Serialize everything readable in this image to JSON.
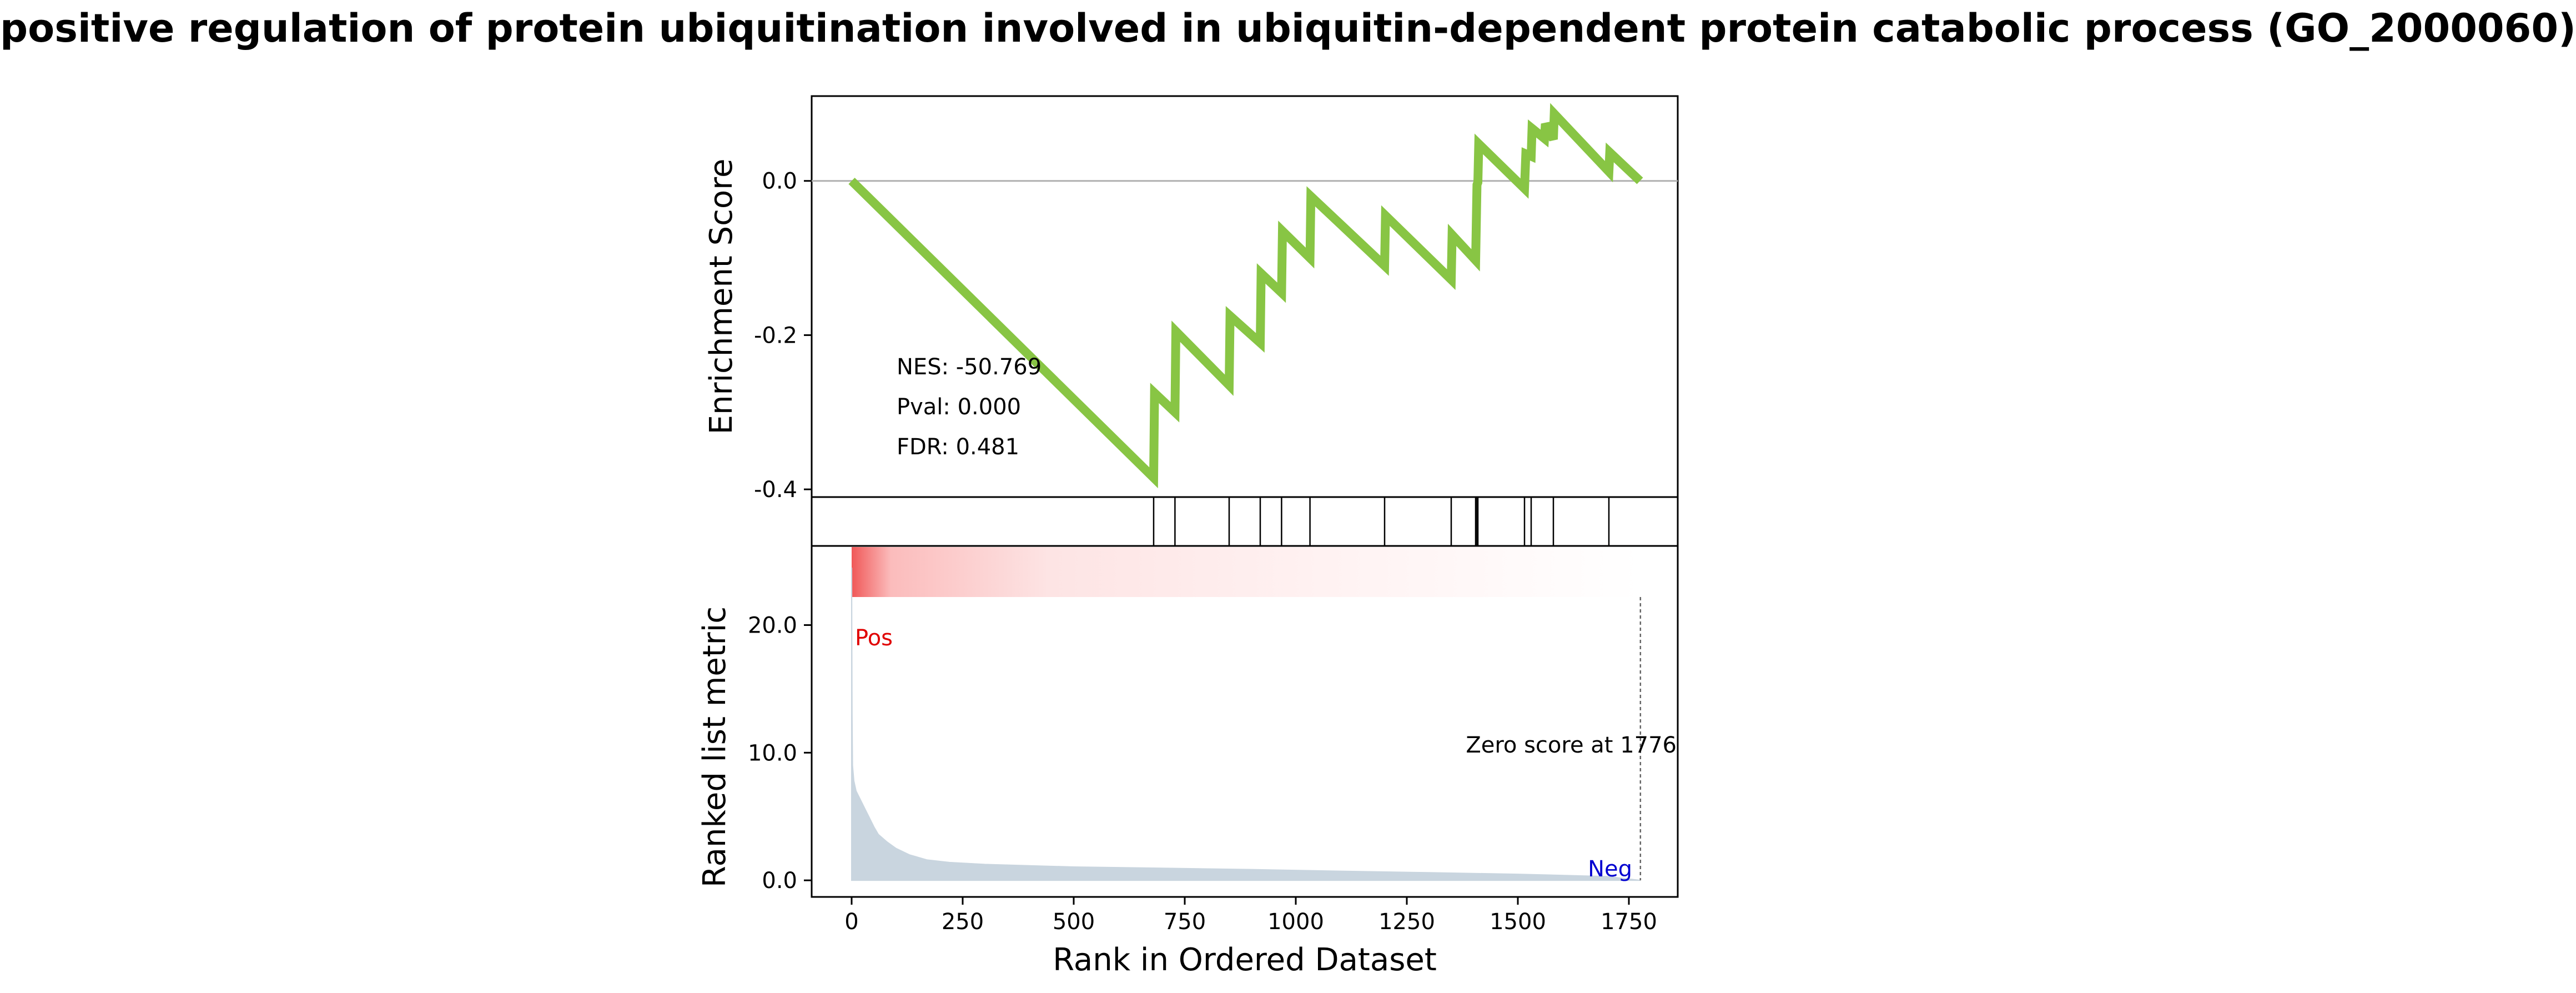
{
  "title": "positive regulation of protein ubiquitination involved in ubiquitin-dependent protein catabolic process (GO_2000060)",
  "colors": {
    "es_line": "#88c544",
    "zero_line": "#b0b0b0",
    "hit_line": "#000000",
    "metric_fill": "#c9d5df",
    "pos_label": "#e00000",
    "neg_label": "#0000d0",
    "heat_high": "#f05858",
    "heat_low": "#ffffff"
  },
  "chart_data": {
    "type": "line",
    "xlabel": "Rank in Ordered Dataset",
    "xlim": [
      -90,
      1860
    ],
    "xticks": [
      0,
      250,
      500,
      750,
      1000,
      1250,
      1500,
      1750
    ],
    "xtick_labels": [
      "0",
      "250",
      "500",
      "750",
      "1000",
      "1250",
      "1500",
      "1750"
    ],
    "enrichment": {
      "ylabel": "Enrichment Score",
      "ylim": [
        -0.41,
        0.11
      ],
      "yticks": [
        0.0,
        -0.2,
        -0.4
      ],
      "ytick_labels": [
        "0.0",
        "-0.2",
        "-0.4"
      ],
      "x": [
        0,
        680,
        682,
        728,
        730,
        850,
        852,
        920,
        922,
        968,
        970,
        1032,
        1034,
        1200,
        1202,
        1350,
        1352,
        1405,
        1408,
        1410,
        1412,
        1515,
        1518,
        1530,
        1532,
        1560,
        1562,
        1580,
        1582,
        1705,
        1707,
        1775
      ],
      "y": [
        0.0,
        -0.385,
        -0.275,
        -0.3,
        -0.195,
        -0.265,
        -0.175,
        -0.21,
        -0.12,
        -0.145,
        -0.065,
        -0.1,
        -0.02,
        -0.11,
        -0.045,
        -0.128,
        -0.07,
        -0.103,
        -0.005,
        -0.002,
        0.048,
        -0.01,
        0.035,
        0.032,
        0.068,
        0.055,
        0.074,
        0.054,
        0.087,
        0.012,
        0.037,
        0.0
      ],
      "stats": [
        "NES: -50.769",
        "Pval: 0.000",
        "FDR: 0.481"
      ]
    },
    "hits": [
      680,
      728,
      850,
      920,
      968,
      1032,
      1200,
      1350,
      1405,
      1408,
      1410,
      1515,
      1530,
      1580,
      1705
    ],
    "ranked_metric": {
      "ylabel": "Ranked list metric",
      "ylim": [
        -1.3,
        26.2
      ],
      "yticks": [
        0.0,
        10.0,
        20.0
      ],
      "ytick_labels": [
        "0.0",
        "10.0",
        "20.0"
      ],
      "x": [
        0,
        1,
        2,
        5,
        10,
        20,
        30,
        40,
        50,
        60,
        80,
        100,
        130,
        170,
        220,
        300,
        400,
        500,
        700,
        900,
        1100,
        1300,
        1500,
        1700,
        1776
      ],
      "y": [
        24.5,
        13.0,
        9.0,
        7.8,
        7.0,
        6.3,
        5.6,
        4.9,
        4.2,
        3.6,
        3.0,
        2.5,
        2.0,
        1.6,
        1.4,
        1.25,
        1.15,
        1.05,
        0.95,
        0.85,
        0.72,
        0.6,
        0.48,
        0.3,
        0.0
      ],
      "pos_label": "Pos",
      "neg_label": "Neg",
      "zero_label": "Zero score at 1776",
      "zero_rank": 1776
    }
  }
}
